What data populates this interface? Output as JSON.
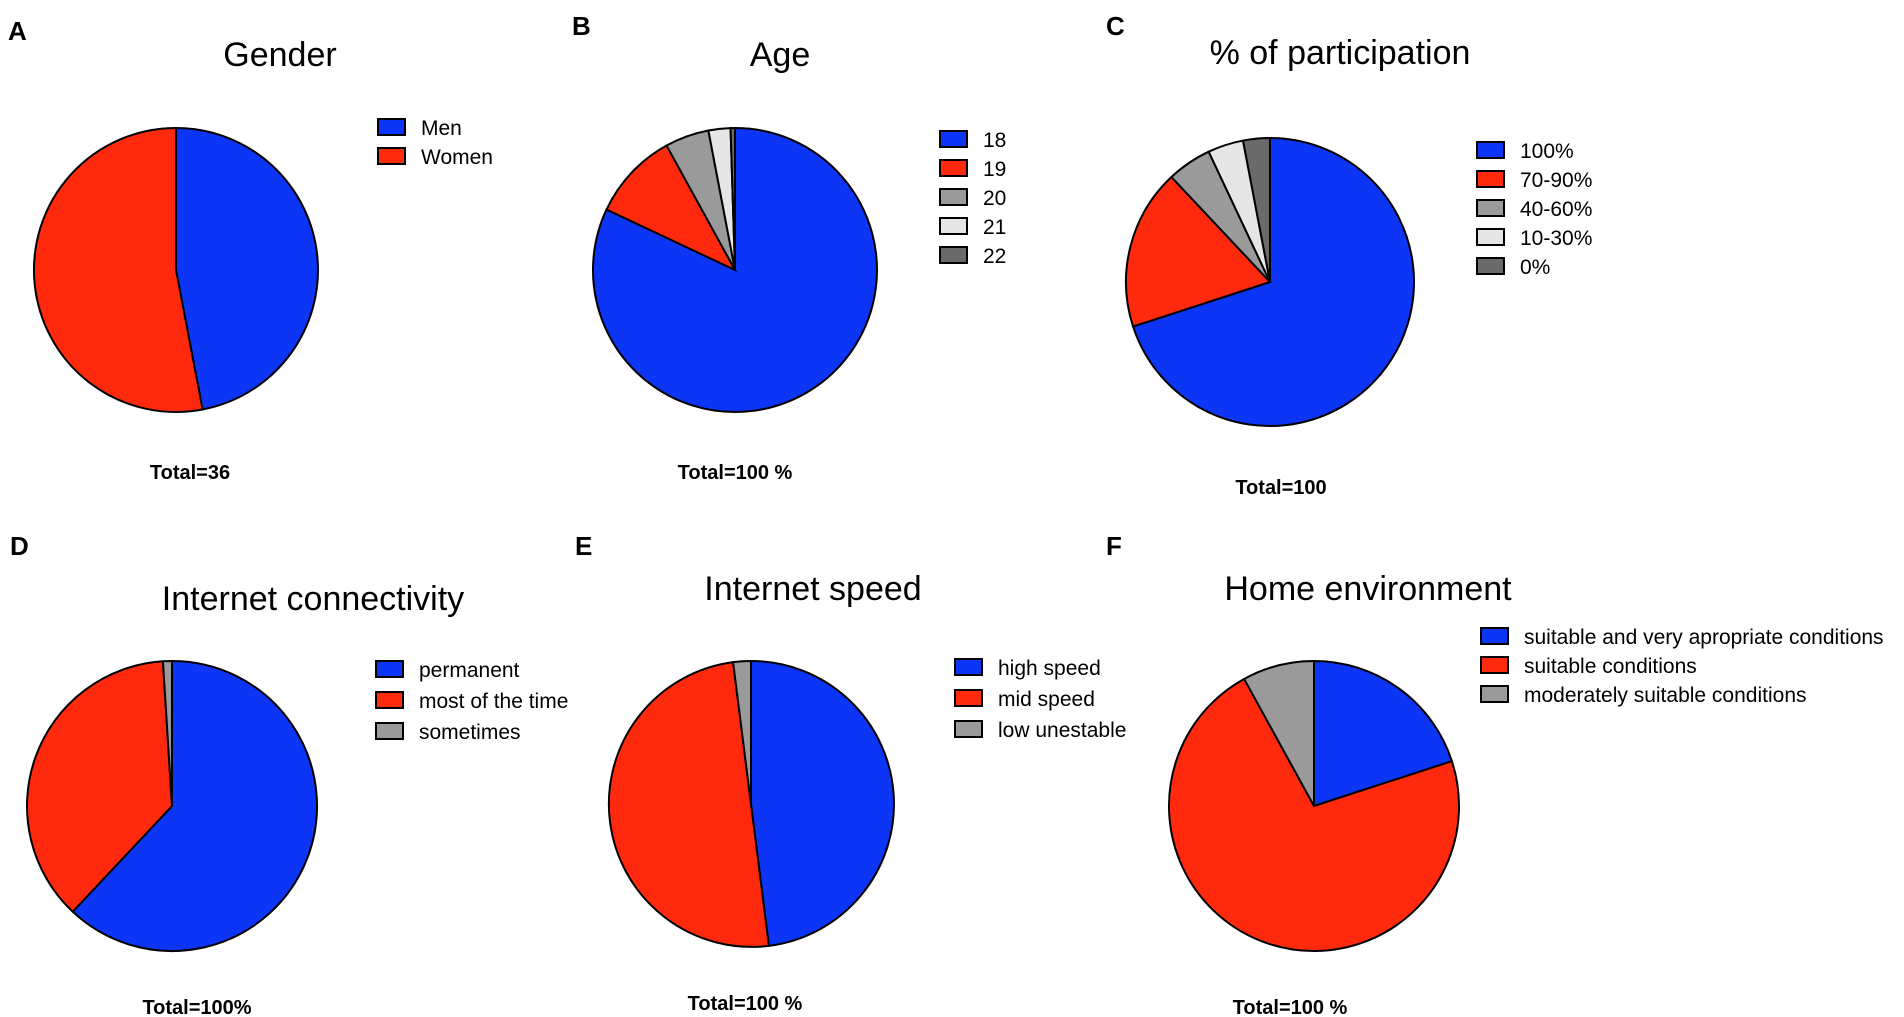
{
  "chart_data": [
    {
      "panel": "A",
      "type": "pie",
      "title": "Gender",
      "total_label": "Total=36",
      "series": [
        {
          "name": "Men",
          "value": 47,
          "color": "#0d35f5"
        },
        {
          "name": "Women",
          "value": 53,
          "color": "#ff2a0d"
        }
      ]
    },
    {
      "panel": "B",
      "type": "pie",
      "title": "Age",
      "total_label": "Total=100 %",
      "series": [
        {
          "name": "18",
          "value": 82,
          "color": "#0d35f5"
        },
        {
          "name": "19",
          "value": 10,
          "color": "#ff2a0d"
        },
        {
          "name": "20",
          "value": 5,
          "color": "#9a9a9a"
        },
        {
          "name": "21",
          "value": 2.5,
          "color": "#e6e6e6"
        },
        {
          "name": "22",
          "value": 0.5,
          "color": "#6a6a6a"
        }
      ]
    },
    {
      "panel": "C",
      "type": "pie",
      "title": "% of participation",
      "total_label": "Total=100",
      "series": [
        {
          "name": "100%",
          "value": 70,
          "color": "#0d35f5"
        },
        {
          "name": "70-90%",
          "value": 18,
          "color": "#ff2a0d"
        },
        {
          "name": "40-60%",
          "value": 5,
          "color": "#9a9a9a"
        },
        {
          "name": "10-30%",
          "value": 4,
          "color": "#e6e6e6"
        },
        {
          "name": "0%",
          "value": 3,
          "color": "#6a6a6a"
        }
      ]
    },
    {
      "panel": "D",
      "type": "pie",
      "title": "Internet connectivity",
      "total_label": "Total=100%",
      "series": [
        {
          "name": "permanent",
          "value": 62,
          "color": "#0d35f5"
        },
        {
          "name": "most of the time",
          "value": 37,
          "color": "#ff2a0d"
        },
        {
          "name": "sometimes",
          "value": 1,
          "color": "#9a9a9a"
        }
      ]
    },
    {
      "panel": "E",
      "type": "pie",
      "title": "Internet speed",
      "total_label": "Total=100 %",
      "series": [
        {
          "name": "high speed",
          "value": 48,
          "color": "#0d35f5"
        },
        {
          "name": "mid speed",
          "value": 50,
          "color": "#ff2a0d"
        },
        {
          "name": "low unestable",
          "value": 2,
          "color": "#9a9a9a"
        }
      ]
    },
    {
      "panel": "F",
      "type": "pie",
      "title": "Home environment",
      "total_label": "Total=100 %",
      "series": [
        {
          "name": "suitable and very apropriate conditions",
          "value": 20,
          "color": "#0d35f5"
        },
        {
          "name": "suitable conditions",
          "value": 72,
          "color": "#ff2a0d"
        },
        {
          "name": "moderately suitable conditions",
          "value": 8,
          "color": "#9a9a9a"
        }
      ]
    }
  ]
}
